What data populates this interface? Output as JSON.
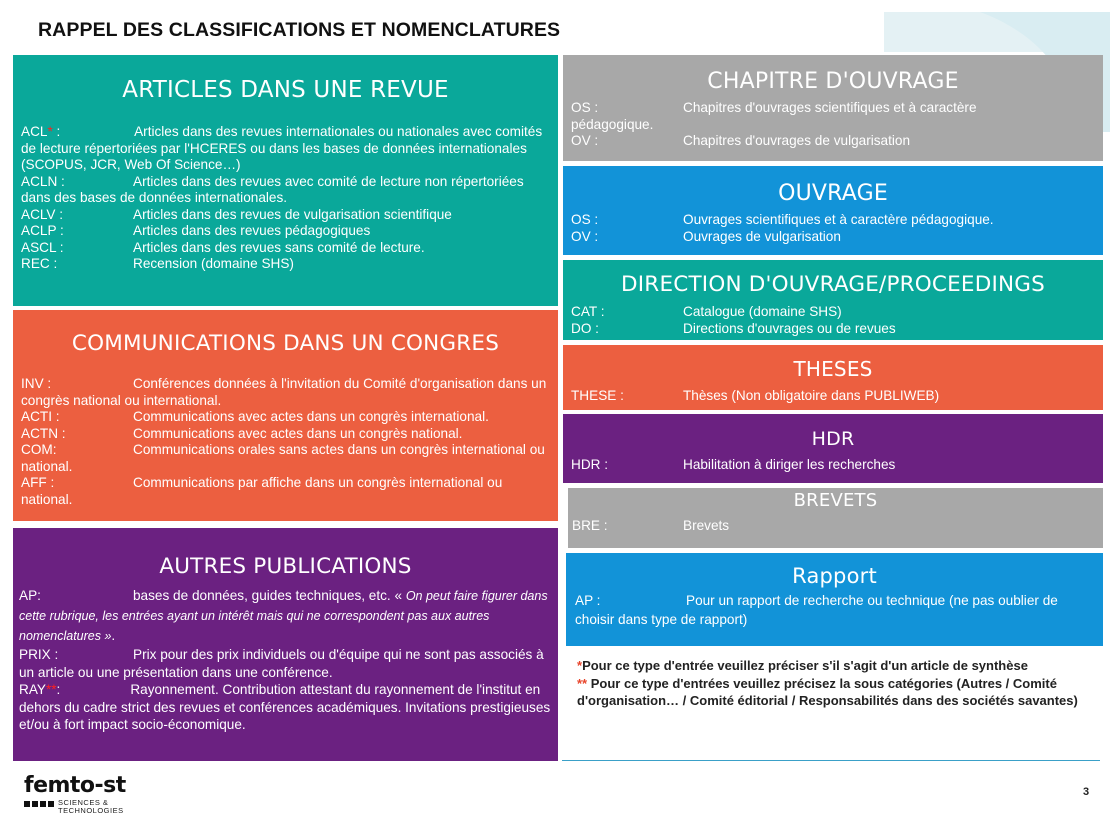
{
  "title": "RAPPEL DES CLASSIFICATIONS ET NOMENCLATURES",
  "articles": {
    "heading": "ARTICLES DANS UNE REVUE",
    "acl_code": "ACL",
    "acl_star": "*",
    "acl_colon": " :",
    "acl_desc": "Articles dans des revues internationales ou nationales avec comités de lecture répertoriées par l'HCERES ou dans les bases de données internationales (SCOPUS, JCR, Web Of Science…)",
    "aacln_code": "ACLN :",
    "acln_desc": "Articles dans des revues avec comité de lecture non répertoriées dans des bases de données internationales.",
    "aclv_code": "ACLV :",
    "aclv_desc": "Articles dans des revues de vulgarisation scientifique",
    "aclp_code": "ACLP :",
    "aclp_desc": "Articles dans des revues pédagogiques",
    "ascl_code": "ASCL :",
    "ascl_desc": "Articles dans des revues sans comité de lecture.",
    "rec_code": "REC :",
    "rec_desc": "Recension (domaine SHS)"
  },
  "communications": {
    "heading": "COMMUNICATIONS DANS UN CONGRES",
    "inv_code": "INV :",
    "inv_desc": "Conférences données à l'invitation du Comité d'organisation dans un congrès national ou international.",
    "acti_code": "ACTI :",
    "acti_desc": "Communications avec actes dans un congrès international.",
    "actn_code": "ACTN :",
    "actn_desc": "Communications avec actes dans un congrès national.",
    "com_code": "COM:",
    "com_desc": "Communications orales sans actes dans un congrès international ou national.",
    "aff_code": "AFF :",
    "aff_desc": "Communications par affiche dans un congrès international ou national."
  },
  "autres": {
    "heading": "AUTRES PUBLICATIONS",
    "ap_code": "AP:",
    "ap_desc": "bases de données, guides techniques, etc. « ",
    "ap_italic": "On peut faire figurer dans cette rubrique, les entrées ayant un intérêt mais qui ne correspondent pas aux autres nomenclatures »",
    "ap_end": ".",
    "prix_code": "PRIX :",
    "prix_desc": "Prix pour des prix individuels ou d'équipe qui ne sont pas associés à un article ou une présentation dans une conférence.",
    "ray_code": "RAY",
    "ray_star": "**",
    "ray_colon": ":",
    "ray_desc": "Rayonnement. Contribution attestant du rayonnement de l'institut en dehors du cadre strict des revues et conférences académiques. Invitations prestigieuses et/ou à fort impact socio-économique."
  },
  "chapitre": {
    "heading": "CHAPITRE D'OUVRAGE",
    "os_code": "OS :",
    "os_desc": "Chapitres d'ouvrages scientifiques et à caractère",
    "os_cont": "pédagogique.",
    "ov_code": "OV :",
    "ov_desc": "Chapitres d'ouvrages de vulgarisation"
  },
  "ouvrage": {
    "heading": "OUVRAGE",
    "os_code": "OS :",
    "os_desc": "Ouvrages scientifiques et à caractère pédagogique.",
    "ov_code": "OV :",
    "ov_desc": "Ouvrages de vulgarisation"
  },
  "direction": {
    "heading": "DIRECTION D'OUVRAGE/PROCEEDINGS",
    "cat_code": "CAT :",
    "cat_desc": "Catalogue (domaine SHS)",
    "do_code": "DO :",
    "do_desc": "Directions d'ouvrages ou de revues"
  },
  "theses": {
    "heading": "THESES",
    "code": "THESE :",
    "desc": "Thèses (Non obligatoire dans PUBLIWEB)"
  },
  "hdr": {
    "heading": "HDR",
    "code": "HDR :",
    "desc": "Habilitation à diriger les recherches"
  },
  "brevets": {
    "heading": "BREVETS",
    "code": "BRE :",
    "desc": "Brevets"
  },
  "rapport": {
    "heading": "Rapport",
    "code": "AP :",
    "desc": "Pour un rapport de recherche ou technique (ne pas oublier de choisir dans type de rapport)"
  },
  "notes": {
    "star1": "*",
    "note1": "Pour ce type d'entrée veuillez préciser s'il s'agit d'un article de synthèse",
    "star2": "**",
    "note2": " Pour ce type d'entrées veuillez précisez la sous catégories (Autres / Comité d'organisation… / Comité éditorial / Responsabilités dans des sociétés savantes)"
  },
  "logo": {
    "name": "femto-st",
    "line1": "SCIENCES &",
    "line2": "TECHNOLOGIES"
  },
  "page_number": "3",
  "colors": {
    "teal": "#0aa89a",
    "orange": "#ec5f40",
    "purple": "#6b2181",
    "grey": "#a8a8a8",
    "blue": "#1293d8"
  }
}
